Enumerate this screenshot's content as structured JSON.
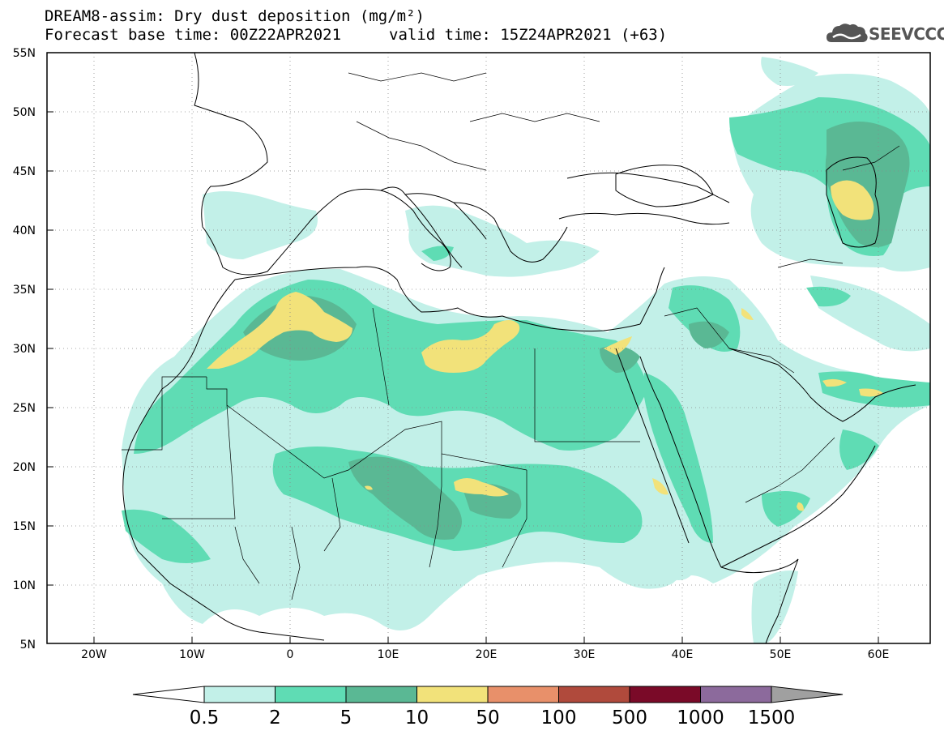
{
  "header": {
    "title_line1": "DREAM8-assim: Dry dust deposition (mg/m²)",
    "title_line2": "Forecast base time: 00Z22APR2021",
    "valid_time": "valid time: 15Z24APR2021 (+63)",
    "logo_text": "SEEVCCC",
    "logo_icon": "cloud-icon"
  },
  "axes": {
    "lat_labels": [
      "55N",
      "50N",
      "45N",
      "40N",
      "35N",
      "30N",
      "25N",
      "20N",
      "15N",
      "10N",
      "5N"
    ],
    "lon_labels": [
      "20W",
      "10W",
      "0",
      "10E",
      "20E",
      "30E",
      "40E",
      "50E",
      "60E"
    ],
    "lat_range": [
      5,
      55
    ],
    "lon_range": [
      -25,
      65
    ]
  },
  "colorbar": {
    "labels": [
      "0.5",
      "2",
      "5",
      "10",
      "50",
      "100",
      "500",
      "1000",
      "1500"
    ],
    "colors": [
      "#c2f0e8",
      "#5fdcb4",
      "#5ab894",
      "#f2e27a",
      "#e8906a",
      "#b04a3c",
      "#7a0a28",
      "#8c6a9c"
    ],
    "under_color": "#ffffff",
    "over_color": "#a0a0a0"
  },
  "colors": {
    "level1": "#c2f0e8",
    "level2": "#5fdcb4",
    "level3": "#5ab894",
    "level4": "#f2e27a",
    "border": "#000000"
  }
}
